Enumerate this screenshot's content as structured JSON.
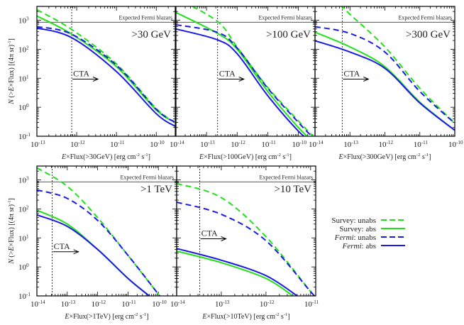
{
  "colors": {
    "survey": "#22e01a",
    "fermi": "#1a1ae6",
    "axis": "#000000",
    "fermi_line": "#555555"
  },
  "legend": {
    "placement": "bottom-right",
    "entries": [
      {
        "label_pre": "Survey",
        "label_post": ": unabs",
        "italic": false,
        "color": "survey",
        "dash": true
      },
      {
        "label_pre": "Survey",
        "label_post": ": abs",
        "italic": false,
        "color": "survey",
        "dash": false
      },
      {
        "label_pre": "Fermi",
        "label_post": ": unabs",
        "italic": true,
        "color": "fermi",
        "dash": true
      },
      {
        "label_pre": "Fermi",
        "label_post": ": abs",
        "italic": true,
        "color": "fermi",
        "dash": false
      }
    ]
  },
  "chart_data": [
    {
      "type": "line",
      "title": ">30 GeV",
      "xlabel_pre": "E",
      "xlabel": "×Flux(>30GeV) [erg cm",
      "ylabel": true,
      "xscale": "log",
      "yscale": "log",
      "xlim": [
        1e-13,
        3e-10
      ],
      "ylim": [
        0.1,
        3000
      ],
      "xtick_exp": [
        -13,
        -12,
        -11,
        -10
      ],
      "ytick_exp": [
        -1,
        0,
        1,
        2,
        3
      ],
      "fermi_expected": 850,
      "fermi_label": "Expected Fermi blazars",
      "cta_flux": 7.5e-13,
      "cta_label": "CTA",
      "series": [
        {
          "name": "Survey: unabs",
          "x": [
            1e-13,
            7.5e-13,
            1e-11,
            1e-10,
            3e-10
          ],
          "y": [
            2300,
            480,
            31,
            0.9,
            0.3
          ]
        },
        {
          "name": "Survey: abs",
          "x": [
            1e-13,
            7.5e-13,
            1e-11,
            1e-10,
            3e-10
          ],
          "y": [
            1400,
            330,
            25,
            0.8,
            0.3
          ]
        },
        {
          "name": "Fermi: unabs",
          "x": [
            1e-13,
            7.5e-13,
            1e-11,
            1e-10,
            3e-10
          ],
          "y": [
            600,
            330,
            28,
            0.85,
            0.3
          ]
        },
        {
          "name": "Fermi: abs",
          "x": [
            1e-13,
            7.5e-13,
            1e-11,
            1e-10,
            3e-10
          ],
          "y": [
            540,
            250,
            17,
            0.6,
            0.22
          ]
        }
      ]
    },
    {
      "type": "line",
      "title": ">100 GeV",
      "xlabel_pre": "E",
      "xlabel": "×Flux(>100GeV) [erg cm",
      "ylabel": false,
      "xscale": "log",
      "yscale": "log",
      "xlim": [
        1e-14,
        3.5e-10
      ],
      "ylim": [
        0.1,
        3000
      ],
      "xtick_exp": [
        -14,
        -13,
        -12,
        -11,
        -10
      ],
      "ytick_exp": [
        -1,
        0,
        1,
        2,
        3
      ],
      "fermi_expected": 850,
      "fermi_label": "Expected Fermi blazars",
      "cta_flux": 2.3e-13,
      "cta_label": "CTA",
      "series": [
        {
          "name": "Survey: unabs",
          "x": [
            1e-14,
            2.3e-13,
            1e-12,
            1e-11,
            1e-10,
            3e-10
          ],
          "y": [
            6000,
            900,
            118,
            4.8,
            0.34,
            0.1
          ]
        },
        {
          "name": "Survey: abs",
          "x": [
            1e-14,
            2.3e-13,
            1e-12,
            1e-11,
            1e-10,
            2.5e-10
          ],
          "y": [
            1850,
            350,
            100,
            3.5,
            0.2,
            0.08
          ]
        },
        {
          "name": "Fermi: unabs",
          "x": [
            1e-14,
            2.3e-13,
            1e-12,
            1e-11,
            1e-10,
            3e-10
          ],
          "y": [
            700,
            380,
            110,
            4.5,
            0.3,
            0.09
          ]
        },
        {
          "name": "Fermi: abs",
          "x": [
            1e-14,
            2.3e-13,
            1e-12,
            1e-11,
            1e-10,
            2.5e-10
          ],
          "y": [
            500,
            210,
            70,
            2.5,
            0.15,
            0.07
          ]
        }
      ]
    },
    {
      "type": "line",
      "title": ">300 GeV",
      "xlabel_pre": "E",
      "xlabel": "×Flux(>300GeV) [erg cm",
      "ylabel": false,
      "xscale": "log",
      "yscale": "log",
      "xlim": [
        1e-14,
        1e-10
      ],
      "ylim": [
        0.1,
        3000
      ],
      "xtick_exp": [
        -14,
        -13,
        -12,
        -11,
        -10
      ],
      "ytick_exp": [
        -1,
        0,
        1,
        2,
        3
      ],
      "fermi_expected": 850,
      "fermi_label": "Expected Fermi blazars",
      "cta_flux": 6e-14,
      "cta_label": "CTA",
      "series": [
        {
          "name": "Survey: unabs",
          "x": [
            3e-14,
            6e-14,
            1e-13,
            1e-12,
            1e-11,
            1e-10
          ],
          "y": [
            4500,
            2900,
            1600,
            120,
            4.5,
            0.28
          ]
        },
        {
          "name": "Survey: abs",
          "x": [
            1e-14,
            1e-13,
            1e-12,
            1e-11,
            1e-10
          ],
          "y": [
            385,
            120,
            25,
            1.5,
            0.16
          ]
        },
        {
          "name": "Fermi: unabs",
          "x": [
            1e-14,
            1e-13,
            1e-12,
            1e-11,
            1e-10
          ],
          "y": [
            600,
            350,
            80,
            3.5,
            0.28
          ]
        },
        {
          "name": "Fermi: abs",
          "x": [
            1e-14,
            1e-13,
            1e-12,
            1e-11,
            1e-10
          ],
          "y": [
            196,
            80,
            22,
            1.4,
            0.16
          ]
        }
      ]
    },
    {
      "type": "line",
      "title": ">1 TeV",
      "xlabel_pre": "E",
      "xlabel": "×Flux(>1TeV) [erg cm",
      "ylabel": true,
      "xscale": "log",
      "yscale": "log",
      "xlim": [
        1e-14,
        4e-10
      ],
      "ylim": [
        0.1,
        3000
      ],
      "xtick_exp": [
        -14,
        -13,
        -12,
        -11,
        -10
      ],
      "ytick_exp": [
        -1,
        0,
        1,
        2,
        3
      ],
      "fermi_expected": 850,
      "fermi_label": "Expected Fermi blazars",
      "cta_flux": 3.2e-14,
      "cta_label": "CTA",
      "series": [
        {
          "name": "Survey: unabs",
          "x": [
            1e-14,
            1e-13,
            1e-12,
            1e-11,
            1.1e-10
          ],
          "y": [
            2600,
            600,
            50,
            2.5,
            0.1
          ]
        },
        {
          "name": "Survey: abs",
          "x": [
            1e-14,
            1e-13,
            1e-12,
            1e-11,
            5e-11
          ],
          "y": [
            90,
            30,
            4,
            0.4,
            0.1
          ]
        },
        {
          "name": "Fermi: unabs",
          "x": [
            1e-14,
            1e-13,
            1e-12,
            1e-11,
            1.1e-10
          ],
          "y": [
            450,
            230,
            40,
            2.5,
            0.1
          ]
        },
        {
          "name": "Fermi: abs",
          "x": [
            1e-14,
            1e-13,
            1e-12,
            1e-11,
            5e-11
          ],
          "y": [
            62,
            25,
            4,
            0.4,
            0.1
          ]
        }
      ]
    },
    {
      "type": "line",
      "title": ">10 TeV",
      "xlabel_pre": "E",
      "xlabel": "×Flux(>10TeV) [erg cm",
      "ylabel": false,
      "xscale": "log",
      "yscale": "log",
      "xlim": [
        1e-14,
        1.3e-11
      ],
      "ylim": [
        0.1,
        3000
      ],
      "xtick_exp": [
        -14,
        -13,
        -12,
        -11
      ],
      "ytick_exp": [
        -1,
        0,
        1,
        2,
        3
      ],
      "fermi_expected": 850,
      "fermi_label": "Expected Fermi blazars",
      "cta_flux": 3.3e-14,
      "cta_label": "CTA",
      "series": [
        {
          "name": "Survey: unabs",
          "x": [
            1e-14,
            1e-13,
            1e-12,
            1e-11,
            1.25e-11
          ],
          "y": [
            750,
            245,
            11,
            0.14,
            0.1
          ]
        },
        {
          "name": "Survey: abs",
          "x": [
            1e-14,
            1e-13,
            1e-12,
            4e-12
          ],
          "y": [
            3.5,
            1.4,
            0.4,
            0.1
          ]
        },
        {
          "name": "Fermi: unabs",
          "x": [
            1e-14,
            1e-13,
            1e-12,
            1e-11,
            1.25e-11
          ],
          "y": [
            170,
            65,
            8,
            0.14,
            0.1
          ]
        },
        {
          "name": "Fermi: abs",
          "x": [
            1e-14,
            1e-13,
            1e-12,
            5e-12
          ],
          "y": [
            4.3,
            1.7,
            0.5,
            0.1
          ]
        }
      ]
    }
  ],
  "ylabel": {
    "pre": "N",
    "mid": " (>",
    "e": "E",
    "post": "×Flux) [(4π sr)"
  },
  "xlabel_units": {
    "s": " s",
    "close": "]"
  }
}
